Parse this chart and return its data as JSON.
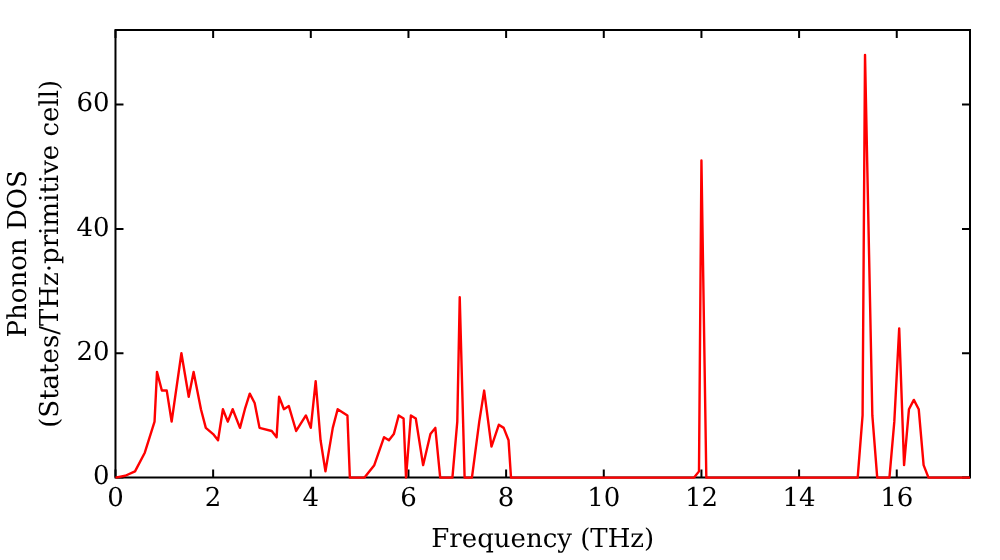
{
  "chart_data": {
    "type": "line",
    "xlabel": "Frequency (THz)",
    "ylabel": "Phonon DOS\n(States/THz·primitive cell)",
    "xlim": [
      0,
      17.5
    ],
    "xticks": [
      0,
      2,
      4,
      6,
      8,
      10,
      12,
      14,
      16
    ],
    "ylim": [
      0,
      72
    ],
    "yticks": [
      0,
      20,
      40,
      60
    ],
    "grid": false,
    "legend": false,
    "marker": "none",
    "line_style": "solid",
    "series": [
      {
        "color": "#ff0000",
        "x": [
          0,
          0.2,
          0.4,
          0.6,
          0.8,
          0.85,
          0.95,
          1.05,
          1.15,
          1.35,
          1.5,
          1.6,
          1.75,
          1.85,
          2.0,
          2.1,
          2.2,
          2.3,
          2.4,
          2.55,
          2.65,
          2.75,
          2.85,
          2.95,
          3.2,
          3.3,
          3.35,
          3.45,
          3.55,
          3.7,
          3.9,
          4.0,
          4.1,
          4.2,
          4.3,
          4.45,
          4.55,
          4.75,
          4.8,
          5.1,
          5.3,
          5.5,
          5.6,
          5.7,
          5.8,
          5.9,
          5.95,
          6.05,
          6.15,
          6.3,
          6.45,
          6.55,
          6.65,
          6.9,
          7.0,
          7.05,
          7.15,
          7.3,
          7.45,
          7.55,
          7.7,
          7.85,
          7.95,
          8.05,
          8.1,
          11.85,
          11.95,
          12.0,
          12.1,
          15.2,
          15.3,
          15.35,
          15.5,
          15.6,
          15.85,
          15.95,
          16.05,
          16.15,
          16.25,
          16.35,
          16.45,
          16.55,
          16.65,
          17.5
        ],
        "values": [
          0,
          0.3,
          1,
          4,
          9,
          17,
          14,
          14,
          9,
          20,
          13,
          17,
          11,
          8,
          7,
          6,
          11,
          9,
          11,
          8,
          11,
          13.5,
          12,
          8,
          7.5,
          6.5,
          13,
          11,
          11.5,
          7.5,
          10,
          8,
          15.5,
          6,
          1,
          8,
          11,
          10,
          0,
          0,
          2,
          6.5,
          6,
          7,
          10,
          9.5,
          0,
          10,
          9.5,
          2,
          7,
          8,
          0,
          0,
          9,
          29,
          0,
          0,
          9,
          14,
          5,
          8.5,
          8,
          6,
          0,
          0,
          1,
          51,
          0,
          0,
          10,
          68,
          10,
          0,
          0,
          9,
          24,
          2,
          11,
          12.5,
          11,
          2,
          0,
          0
        ]
      }
    ]
  }
}
